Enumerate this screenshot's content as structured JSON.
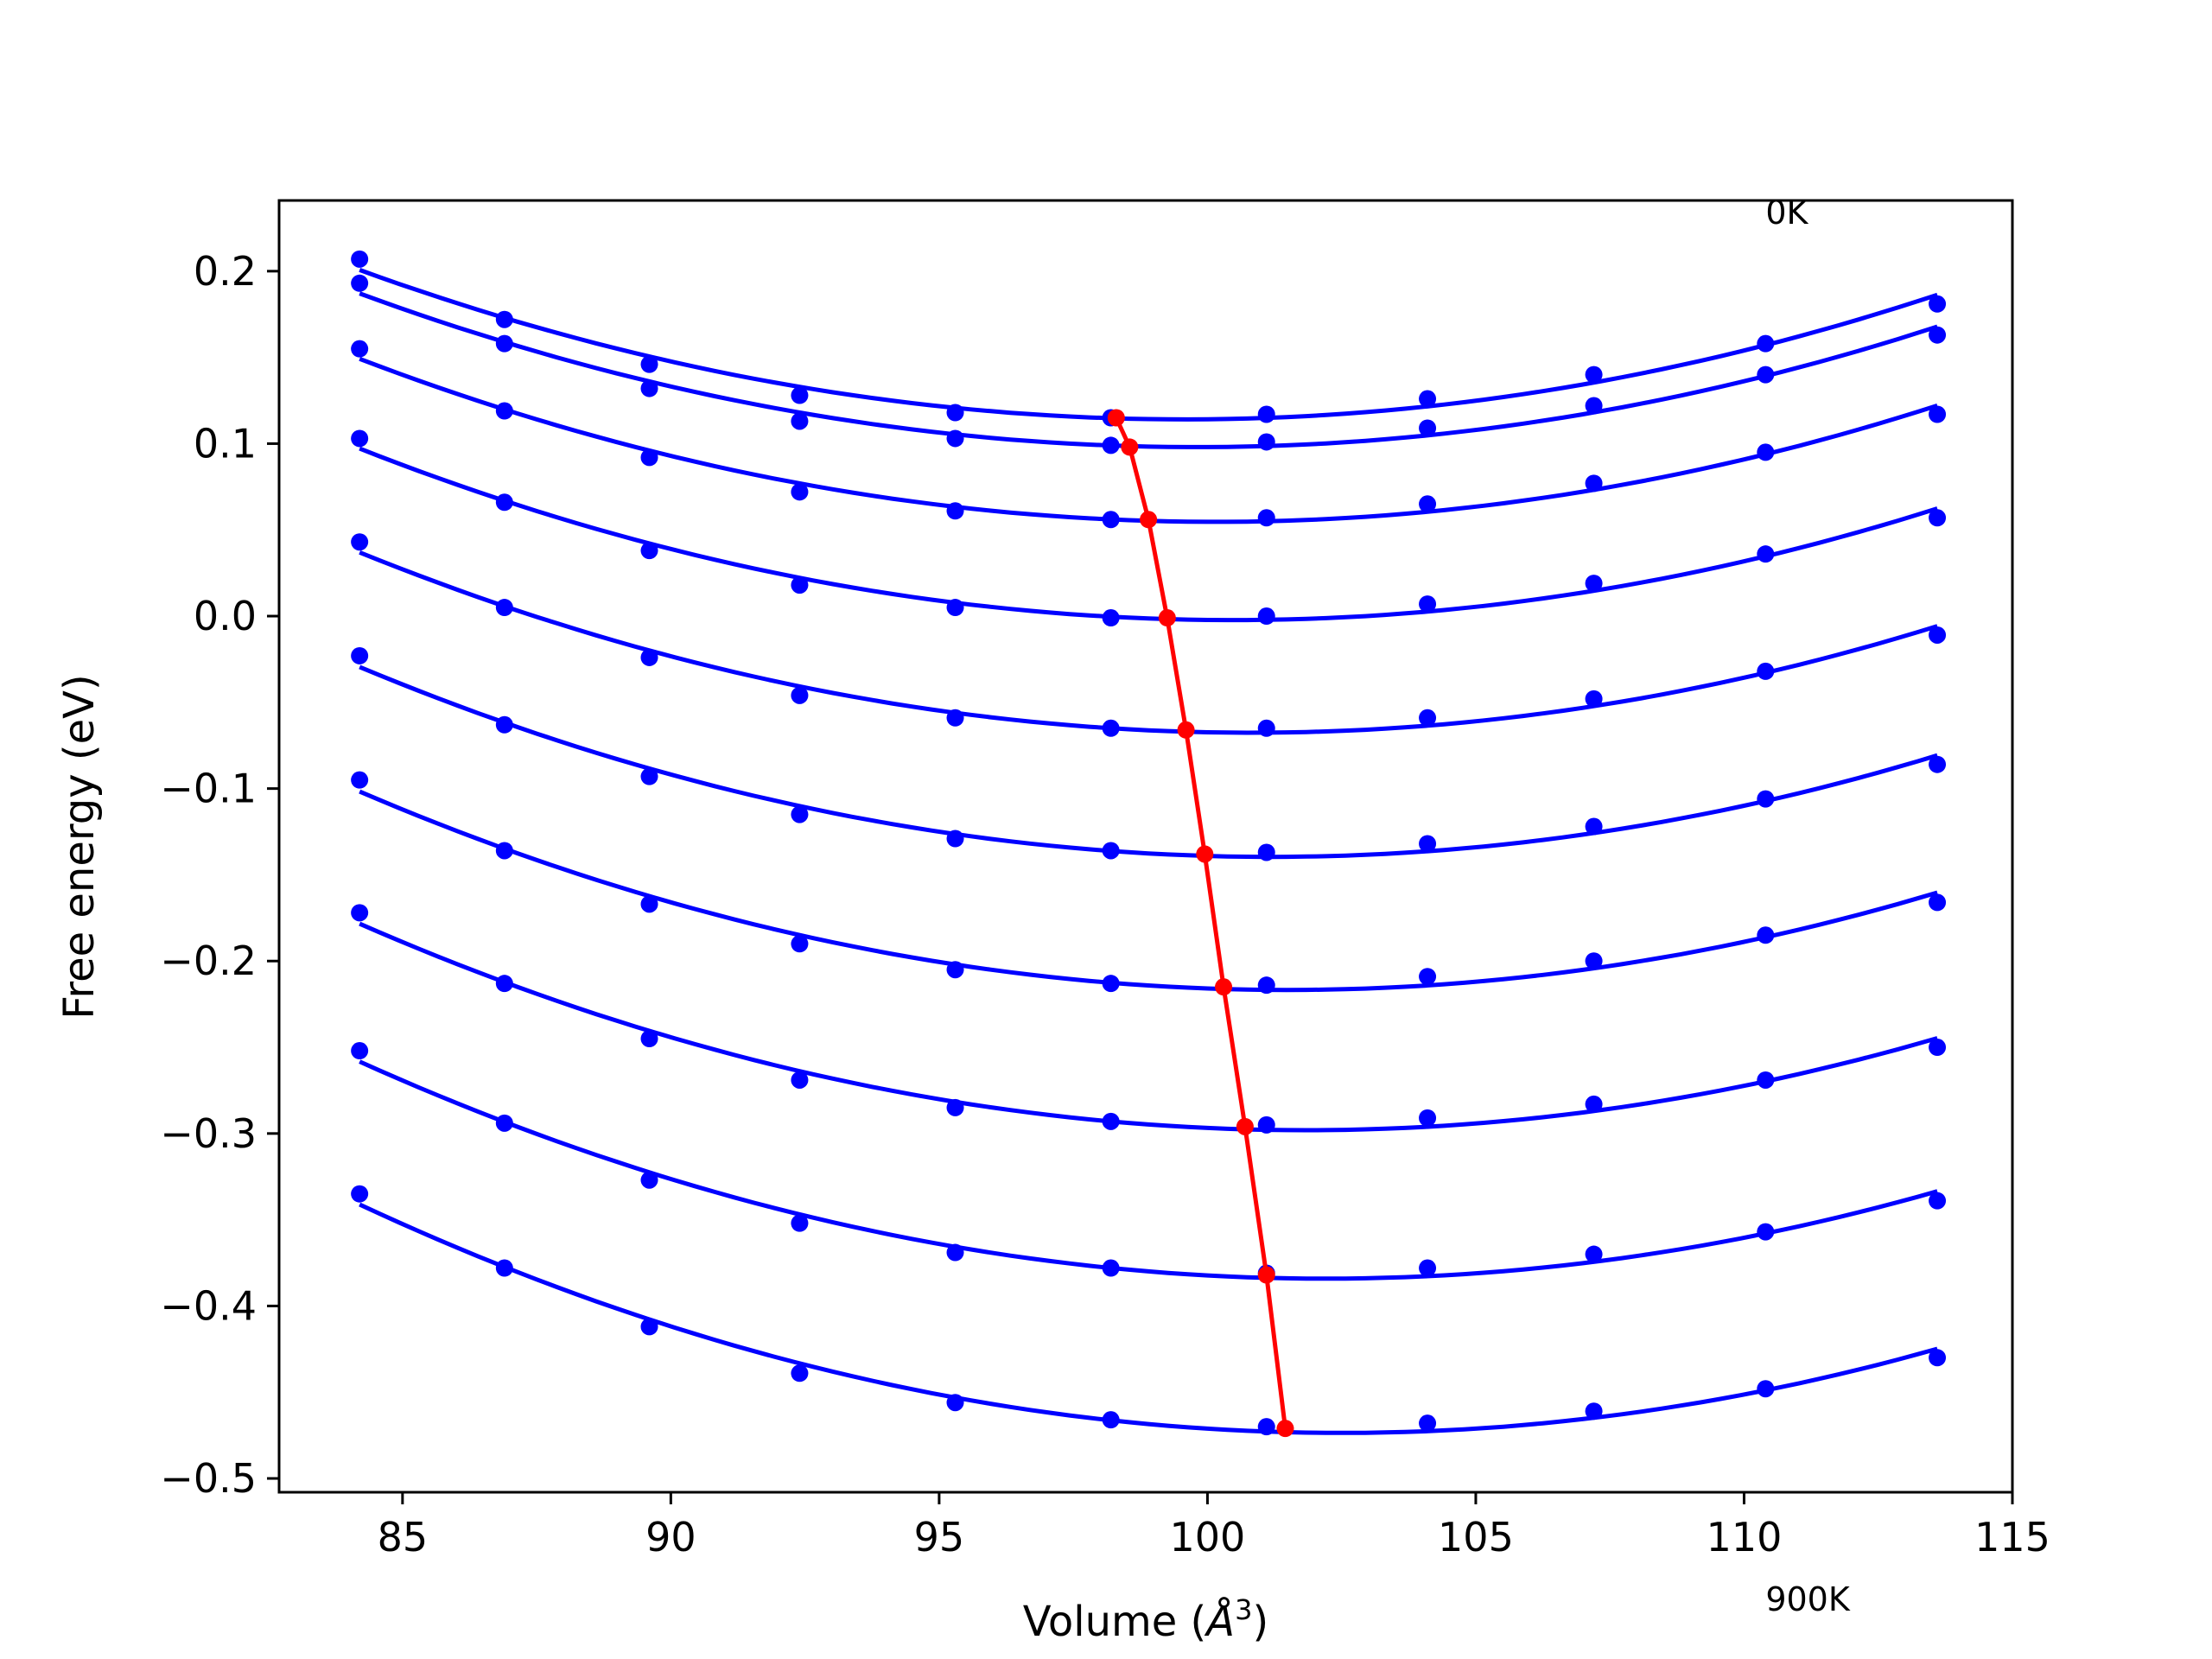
{
  "chart_data": {
    "type": "line",
    "title": "",
    "xlabel": "Volume (",
    "xlabel_symbol": "Å",
    "xlabel_exponent": "3",
    "xlabel_close": ")",
    "ylabel": "Free energy (eV)",
    "xlim": [
      82.7,
      115.0
    ],
    "ylim": [
      -0.508,
      0.241
    ],
    "xticks": [
      85,
      90,
      95,
      100,
      105,
      110,
      115
    ],
    "xtick_labels": [
      "85",
      "90",
      "95",
      "100",
      "105",
      "110",
      "115"
    ],
    "yticks": [
      0.2,
      0.1,
      0.0,
      -0.1,
      -0.2,
      -0.3,
      -0.4,
      -0.5
    ],
    "ytick_labels": [
      "0.2",
      "0.1",
      "0.0",
      "−0.1",
      "−0.2",
      "−0.3",
      "−0.4",
      "−0.5"
    ],
    "grid": false,
    "legend": false,
    "colors": {
      "curves": "#0000ff",
      "minimum_line": "#ff0000"
    },
    "annotations": [
      {
        "text": "0K",
        "x": 110.4,
        "y": 0.234
      },
      {
        "text": "900K",
        "x": 110.4,
        "y": -0.57
      }
    ],
    "x": [
      84.2,
      86.9,
      89.6,
      92.4,
      95.3,
      98.2,
      101.1,
      104.1,
      107.2,
      110.4,
      113.6
    ],
    "series": [
      {
        "values": [
          0.207,
          0.172,
          0.146,
          0.128,
          0.118,
          0.115,
          0.117,
          0.126,
          0.14,
          0.158,
          0.181
        ],
        "min_x": 98.3,
        "min_y": 0.115
      },
      {
        "values": [
          0.193,
          0.158,
          0.132,
          0.113,
          0.103,
          0.099,
          0.101,
          0.109,
          0.122,
          0.14,
          0.163
        ],
        "min_x": 98.55,
        "min_y": 0.098
      },
      {
        "values": [
          0.155,
          0.119,
          0.092,
          0.072,
          0.061,
          0.056,
          0.057,
          0.065,
          0.077,
          0.095,
          0.117
        ],
        "min_x": 98.9,
        "min_y": 0.056
      },
      {
        "values": [
          0.043,
          0.005,
          -0.024,
          -0.046,
          -0.059,
          -0.065,
          -0.065,
          -0.059,
          -0.048,
          -0.032,
          -0.011
        ],
        "min_x": 99.6,
        "min_y": -0.066
      },
      {
        "values": [
          0.103,
          0.066,
          0.038,
          0.018,
          0.005,
          -0.001,
          0.0,
          0.007,
          0.019,
          0.036,
          0.057
        ],
        "min_x": 99.25,
        "min_y": -0.001
      },
      {
        "values": [
          -0.023,
          -0.063,
          -0.093,
          -0.115,
          -0.129,
          -0.136,
          -0.137,
          -0.132,
          -0.122,
          -0.106,
          -0.086
        ],
        "min_x": 99.95,
        "min_y": -0.138
      },
      {
        "values": [
          -0.095,
          -0.136,
          -0.167,
          -0.19,
          -0.205,
          -0.213,
          -0.214,
          -0.209,
          -0.2,
          -0.185,
          -0.166
        ],
        "min_x": 100.3,
        "min_y": -0.215
      },
      {
        "values": [
          -0.172,
          -0.213,
          -0.245,
          -0.269,
          -0.285,
          -0.293,
          -0.295,
          -0.291,
          -0.283,
          -0.269,
          -0.25
        ],
        "min_x": 100.7,
        "min_y": -0.296
      },
      {
        "values": [
          -0.252,
          -0.294,
          -0.327,
          -0.352,
          -0.369,
          -0.378,
          -0.381,
          -0.378,
          -0.37,
          -0.357,
          -0.339
        ],
        "min_x": 101.1,
        "min_y": -0.382
      },
      {
        "values": [
          -0.335,
          -0.378,
          -0.412,
          -0.439,
          -0.456,
          -0.466,
          -0.47,
          -0.468,
          -0.461,
          -0.448,
          -0.43
        ],
        "min_x": 101.45,
        "min_y": -0.471
      }
    ]
  }
}
